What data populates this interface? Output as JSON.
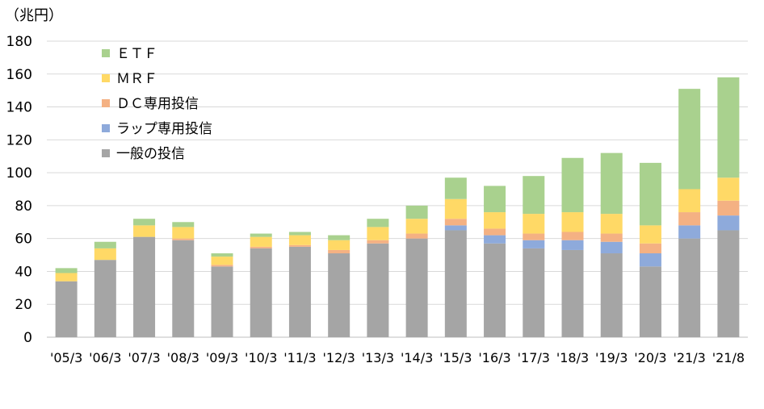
{
  "chart_data": {
    "type": "bar",
    "stacked": true,
    "unit_label": "（兆円）",
    "categories": [
      "'05/3",
      "'06/3",
      "'07/3",
      "'08/3",
      "'09/3",
      "'10/3",
      "'11/3",
      "'12/3",
      "'13/3",
      "'14/3",
      "'15/3",
      "'16/3",
      "'17/3",
      "'18/3",
      "'19/3",
      "'20/3",
      "'21/3",
      "'21/8"
    ],
    "series": [
      {
        "name": "一般の投信",
        "color": "#a5a5a5",
        "values": [
          34,
          47,
          61,
          59,
          43,
          54,
          55,
          51,
          57,
          60,
          65,
          57,
          54,
          53,
          51,
          43,
          60,
          65
        ]
      },
      {
        "name": "ラップ専用投信",
        "color": "#8eaadb",
        "values": [
          0,
          0,
          0,
          0,
          0,
          0,
          0,
          0,
          0,
          0,
          3,
          5,
          5,
          6,
          7,
          8,
          8,
          9
        ]
      },
      {
        "name": "ＤＣ専用投信",
        "color": "#f4b183",
        "values": [
          0,
          0,
          0,
          1,
          1,
          1,
          1,
          2,
          2,
          3,
          4,
          4,
          4,
          5,
          5,
          6,
          8,
          9
        ]
      },
      {
        "name": "ＭＲＦ",
        "color": "#ffd966",
        "values": [
          5,
          7,
          7,
          7,
          5,
          6,
          6,
          6,
          8,
          9,
          12,
          10,
          12,
          12,
          12,
          11,
          14,
          14
        ]
      },
      {
        "name": "ＥＴＦ",
        "color": "#a9d18e",
        "values": [
          3,
          4,
          4,
          3,
          2,
          2,
          2,
          3,
          5,
          8,
          13,
          16,
          23,
          33,
          37,
          38,
          61,
          61
        ]
      }
    ],
    "legend_order": [
      "ＥＴＦ",
      "ＭＲＦ",
      "ＤＣ専用投信",
      "ラップ専用投信",
      "一般の投信"
    ],
    "yticks": [
      "0",
      "20",
      "40",
      "60",
      "80",
      "100",
      "120",
      "140",
      "160",
      "180"
    ],
    "ylim": [
      0,
      180
    ],
    "grid": true,
    "legend_position": "top-left"
  }
}
